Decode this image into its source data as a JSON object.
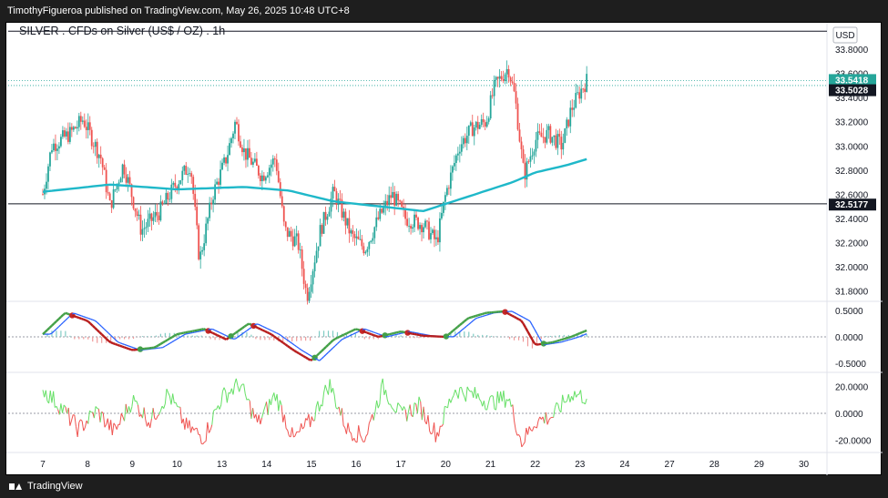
{
  "header": {
    "publish_line": "TimothyFigueroa published on TradingView.com, May 26, 2025 10:48 UTC+8"
  },
  "chart": {
    "title": "SILVER . CFDs on Silver (US$ / OZ) . 1h",
    "currency": "USD",
    "colors": {
      "up": "#26a69a",
      "down": "#ef5350",
      "ma": "#1fb8c9",
      "last_price_bg": "#26a69a",
      "label_bg": "#131722"
    }
  },
  "footer": {
    "brand": "TradingView"
  },
  "chart_data": [
    {
      "type": "candlestick",
      "title": "SILVER . CFDs on Silver (US$ / OZ) . 1h",
      "x_tick_labels": [
        "7",
        "8",
        "9",
        "10",
        "13",
        "14",
        "15",
        "16",
        "17",
        "20",
        "21",
        "22",
        "23",
        "24",
        "27",
        "28",
        "29",
        "30"
      ],
      "y_tick_labels": [
        "33.8000",
        "33.6000",
        "33.4000",
        "33.2000",
        "33.0000",
        "32.8000",
        "32.6000",
        "32.4000",
        "32.2000",
        "32.0000",
        "31.8000"
      ],
      "ylim": [
        31.72,
        34.02
      ],
      "price_labels": [
        "33.5418",
        "33.5028",
        "32.5177"
      ],
      "horizontal_lines": [
        33.95,
        33.5,
        32.52
      ],
      "close_path": [
        {
          "x": 0,
          "close": 32.6
        },
        {
          "x": 0.2,
          "close": 33.0
        },
        {
          "x": 0.6,
          "close": 33.1
        },
        {
          "x": 0.9,
          "close": 33.22
        },
        {
          "x": 1.3,
          "close": 32.9
        },
        {
          "x": 1.5,
          "close": 32.5
        },
        {
          "x": 1.8,
          "close": 32.85
        },
        {
          "x": 2.2,
          "close": 32.3
        },
        {
          "x": 2.6,
          "close": 32.45
        },
        {
          "x": 3.0,
          "close": 32.7
        },
        {
          "x": 3.3,
          "close": 32.85
        },
        {
          "x": 3.5,
          "close": 32.05
        },
        {
          "x": 3.8,
          "close": 32.6
        },
        {
          "x": 4.1,
          "close": 32.9
        },
        {
          "x": 4.3,
          "close": 33.2
        },
        {
          "x": 4.5,
          "close": 32.95
        },
        {
          "x": 4.9,
          "close": 32.75
        },
        {
          "x": 5.2,
          "close": 32.9
        },
        {
          "x": 5.4,
          "close": 32.3
        },
        {
          "x": 5.7,
          "close": 32.2
        },
        {
          "x": 5.9,
          "close": 31.75
        },
        {
          "x": 6.2,
          "close": 32.3
        },
        {
          "x": 6.5,
          "close": 32.62
        },
        {
          "x": 6.9,
          "close": 32.25
        },
        {
          "x": 7.2,
          "close": 32.15
        },
        {
          "x": 7.5,
          "close": 32.4
        },
        {
          "x": 7.8,
          "close": 32.6
        },
        {
          "x": 8.1,
          "close": 32.4
        },
        {
          "x": 8.5,
          "close": 32.35
        },
        {
          "x": 8.8,
          "close": 32.2
        },
        {
          "x": 9.0,
          "close": 32.6
        },
        {
          "x": 9.3,
          "close": 33.0
        },
        {
          "x": 9.6,
          "close": 33.15
        },
        {
          "x": 9.9,
          "close": 33.2
        },
        {
          "x": 10.1,
          "close": 33.5
        },
        {
          "x": 10.4,
          "close": 33.65
        },
        {
          "x": 10.55,
          "close": 33.4
        },
        {
          "x": 10.75,
          "close": 32.75
        },
        {
          "x": 11.0,
          "close": 33.05
        },
        {
          "x": 11.3,
          "close": 33.1
        },
        {
          "x": 11.6,
          "close": 33.0
        },
        {
          "x": 11.8,
          "close": 33.3
        },
        {
          "x": 12.0,
          "close": 33.45
        },
        {
          "x": 12.15,
          "close": 33.54
        }
      ],
      "moving_average": [
        {
          "x": 0,
          "value": 32.62
        },
        {
          "x": 1.5,
          "value": 32.68
        },
        {
          "x": 3.0,
          "value": 32.64
        },
        {
          "x": 4.5,
          "value": 32.66
        },
        {
          "x": 5.5,
          "value": 32.63
        },
        {
          "x": 6.5,
          "value": 32.54
        },
        {
          "x": 7.5,
          "value": 32.5
        },
        {
          "x": 8.5,
          "value": 32.46
        },
        {
          "x": 9.5,
          "value": 32.58
        },
        {
          "x": 10.5,
          "value": 32.7
        },
        {
          "x": 11.0,
          "value": 32.78
        },
        {
          "x": 11.7,
          "value": 32.84
        },
        {
          "x": 12.15,
          "value": 32.89
        }
      ]
    },
    {
      "type": "line",
      "y_tick_labels": [
        "0.5000",
        "0.0000",
        "-0.5000"
      ],
      "ylim": [
        -0.65,
        0.65
      ],
      "series": [
        {
          "values": [
            {
              "x": 0,
              "y": 0.05
            },
            {
              "x": 0.5,
              "y": 0.45
            },
            {
              "x": 1.0,
              "y": 0.3
            },
            {
              "x": 1.5,
              "y": -0.1
            },
            {
              "x": 2.0,
              "y": -0.25
            },
            {
              "x": 2.5,
              "y": -0.2
            },
            {
              "x": 3.0,
              "y": 0.05
            },
            {
              "x": 3.6,
              "y": 0.15
            },
            {
              "x": 4.1,
              "y": -0.05
            },
            {
              "x": 4.6,
              "y": 0.25
            },
            {
              "x": 5.1,
              "y": 0.05
            },
            {
              "x": 5.6,
              "y": -0.25
            },
            {
              "x": 6.0,
              "y": -0.45
            },
            {
              "x": 6.5,
              "y": -0.05
            },
            {
              "x": 7.0,
              "y": 0.15
            },
            {
              "x": 7.5,
              "y": 0.0
            },
            {
              "x": 8.0,
              "y": 0.1
            },
            {
              "x": 8.5,
              "y": 0.02
            },
            {
              "x": 9.0,
              "y": 0.0
            },
            {
              "x": 9.5,
              "y": 0.35
            },
            {
              "x": 9.9,
              "y": 0.45
            },
            {
              "x": 10.3,
              "y": 0.48
            },
            {
              "x": 10.7,
              "y": 0.3
            },
            {
              "x": 11.0,
              "y": -0.15
            },
            {
              "x": 11.4,
              "y": -0.1
            },
            {
              "x": 11.8,
              "y": 0.0
            },
            {
              "x": 12.15,
              "y": 0.12
            }
          ]
        }
      ]
    },
    {
      "type": "line",
      "y_tick_labels": [
        "20.0000",
        "0.0000",
        "-20.0000"
      ],
      "ylim": [
        -28,
        30
      ],
      "series": [
        {
          "values": [
            {
              "x": 0,
              "y": 18
            },
            {
              "x": 0.4,
              "y": 5
            },
            {
              "x": 0.8,
              "y": -12
            },
            {
              "x": 1.2,
              "y": 2
            },
            {
              "x": 1.6,
              "y": -14
            },
            {
              "x": 2.0,
              "y": 10
            },
            {
              "x": 2.4,
              "y": -6
            },
            {
              "x": 2.8,
              "y": 15
            },
            {
              "x": 3.2,
              "y": -10
            },
            {
              "x": 3.6,
              "y": -18
            },
            {
              "x": 4.0,
              "y": 12
            },
            {
              "x": 4.4,
              "y": 22
            },
            {
              "x": 4.8,
              "y": -8
            },
            {
              "x": 5.2,
              "y": 14
            },
            {
              "x": 5.6,
              "y": -20
            },
            {
              "x": 6.0,
              "y": -5
            },
            {
              "x": 6.4,
              "y": 22
            },
            {
              "x": 6.8,
              "y": -12
            },
            {
              "x": 7.2,
              "y": -18
            },
            {
              "x": 7.6,
              "y": 20
            },
            {
              "x": 8.0,
              "y": -2
            },
            {
              "x": 8.4,
              "y": 6
            },
            {
              "x": 8.8,
              "y": -16
            },
            {
              "x": 9.2,
              "y": 18
            },
            {
              "x": 9.6,
              "y": 14
            },
            {
              "x": 10.0,
              "y": 8
            },
            {
              "x": 10.4,
              "y": 12
            },
            {
              "x": 10.7,
              "y": -22
            },
            {
              "x": 11.0,
              "y": -6
            },
            {
              "x": 11.4,
              "y": -2
            },
            {
              "x": 11.8,
              "y": 15
            },
            {
              "x": 12.15,
              "y": 12
            }
          ]
        }
      ]
    }
  ]
}
